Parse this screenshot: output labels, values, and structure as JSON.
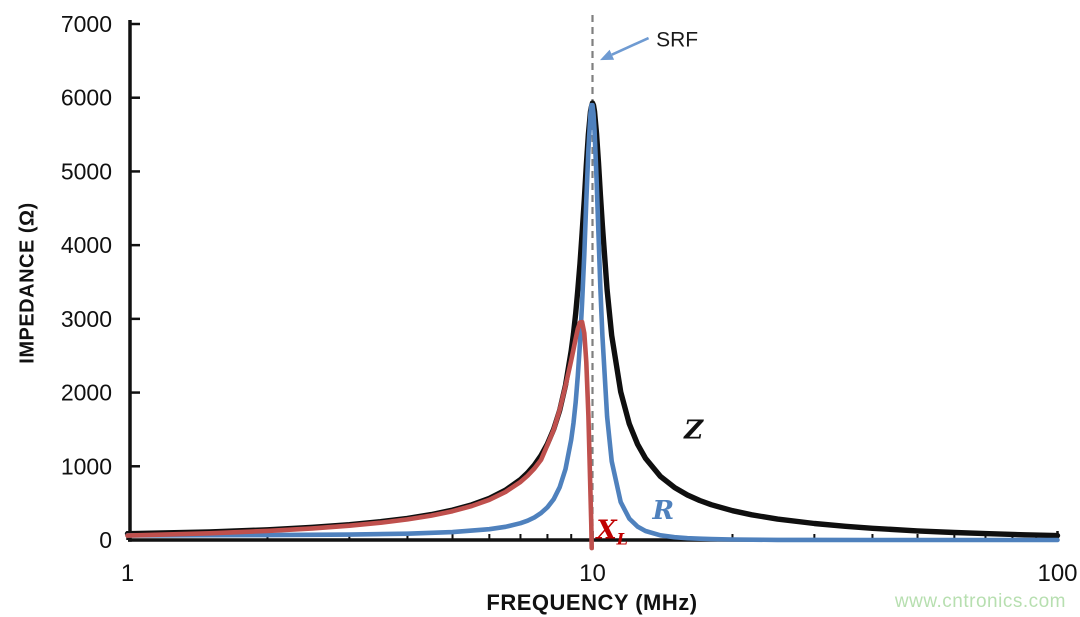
{
  "page": {
    "watermark": "www.cntronics.com"
  },
  "chart_data": {
    "type": "line",
    "title": "",
    "xlabel": "FREQUENCY (MHz)",
    "ylabel": "IMPEDANCE (Ω)",
    "x_scale": "log",
    "xlim": [
      1,
      100
    ],
    "ylim": [
      0,
      7000
    ],
    "grid": false,
    "legend_position": "none",
    "x_ticks": [
      1,
      10,
      100
    ],
    "x_minor_ticks": [
      2,
      3,
      4,
      5,
      6,
      7,
      8,
      9,
      20,
      30,
      40,
      50,
      60,
      70,
      80,
      90
    ],
    "y_ticks": [
      0,
      1000,
      2000,
      3000,
      4000,
      5000,
      6000,
      7000
    ],
    "axis_color": "#111111",
    "annotation": {
      "label": "SRF",
      "frequency_mhz": 10,
      "line_color": "#7f7f7f",
      "arrow_color": "#6f9bd2",
      "label_color": "#1a1a1a",
      "label_pos": [
        13.7,
        6800
      ],
      "arrow_from": [
        13.2,
        6810
      ],
      "arrow_to": [
        10.38,
        6510
      ]
    },
    "series": [
      {
        "name": "Z",
        "description": "total impedance magnitude",
        "color": "#0f0f0f",
        "width": 5.4,
        "label": "Z",
        "label_sub": "",
        "label_color": "#111111",
        "label_anchor": "middle",
        "label_pos": [
          16.5,
          1500
        ],
        "points": [
          [
            1,
            86
          ],
          [
            1.5,
            110
          ],
          [
            2,
            139
          ],
          [
            2.5,
            172
          ],
          [
            3,
            208
          ],
          [
            3.5,
            248
          ],
          [
            4,
            293
          ],
          [
            4.5,
            345
          ],
          [
            5,
            405
          ],
          [
            5.5,
            477
          ],
          [
            6,
            565
          ],
          [
            6.5,
            676
          ],
          [
            7,
            820
          ],
          [
            7.25,
            910
          ],
          [
            7.5,
            1017
          ],
          [
            7.75,
            1146
          ],
          [
            8,
            1304
          ],
          [
            8.25,
            1503
          ],
          [
            8.5,
            1759
          ],
          [
            8.75,
            2099
          ],
          [
            9,
            2566
          ],
          [
            9.1,
            2802
          ],
          [
            9.2,
            3076
          ],
          [
            9.3,
            3391
          ],
          [
            9.4,
            3753
          ],
          [
            9.5,
            4164
          ],
          [
            9.6,
            4615
          ],
          [
            9.7,
            5080
          ],
          [
            9.8,
            5506
          ],
          [
            9.9,
            5815
          ],
          [
            9.95,
            5880
          ],
          [
            10,
            5928
          ],
          [
            10.05,
            5899
          ],
          [
            10.1,
            5816
          ],
          [
            10.2,
            5519
          ],
          [
            10.3,
            5117
          ],
          [
            10.4,
            4683
          ],
          [
            10.5,
            4265
          ],
          [
            10.75,
            3394
          ],
          [
            11,
            2774
          ],
          [
            11.5,
            2010
          ],
          [
            12,
            1575
          ],
          [
            12.5,
            1298
          ],
          [
            13,
            1108
          ],
          [
            14,
            863
          ],
          [
            15,
            713
          ],
          [
            16,
            610
          ],
          [
            17,
            536
          ],
          [
            18,
            479
          ],
          [
            20,
            398
          ],
          [
            22,
            342
          ],
          [
            25,
            284
          ],
          [
            30,
            224
          ],
          [
            35,
            186
          ],
          [
            40,
            159
          ],
          [
            50,
            124
          ],
          [
            60,
            102
          ],
          [
            70,
            87
          ],
          [
            85,
            71
          ],
          [
            100,
            60
          ]
        ]
      },
      {
        "name": "R",
        "description": "resistive (real) part",
        "color": "#4f81bd",
        "width": 4.6,
        "label": "R",
        "label_sub": "",
        "label_color": "#4f81bd",
        "label_anchor": "middle",
        "label_pos": [
          14.2,
          410
        ],
        "points": [
          [
            1,
            62
          ],
          [
            2,
            66
          ],
          [
            3,
            73
          ],
          [
            4,
            85
          ],
          [
            5,
            107
          ],
          [
            6,
            146
          ],
          [
            6.5,
            179
          ],
          [
            7,
            228
          ],
          [
            7.25,
            262
          ],
          [
            7.5,
            306
          ],
          [
            7.75,
            365
          ],
          [
            8,
            444
          ],
          [
            8.25,
            554
          ],
          [
            8.5,
            716
          ],
          [
            8.75,
            962
          ],
          [
            9,
            1361
          ],
          [
            9.1,
            1588
          ],
          [
            9.2,
            1872
          ],
          [
            9.3,
            2228
          ],
          [
            9.4,
            2673
          ],
          [
            9.5,
            3222
          ],
          [
            9.6,
            3875
          ],
          [
            9.7,
            4601
          ],
          [
            9.8,
            5296
          ],
          [
            9.9,
            5789
          ],
          [
            9.95,
            5899
          ],
          [
            10,
            5898
          ],
          [
            10.05,
            5783
          ],
          [
            10.1,
            5566
          ],
          [
            10.2,
            4916
          ],
          [
            10.3,
            4144
          ],
          [
            10.4,
            3406
          ],
          [
            10.5,
            2771
          ],
          [
            10.75,
            1675
          ],
          [
            11,
            1069
          ],
          [
            11.5,
            514
          ],
          [
            12,
            290
          ],
          [
            12.5,
            182
          ],
          [
            13,
            122
          ],
          [
            14,
            64
          ],
          [
            15,
            38
          ],
          [
            16,
            25
          ],
          [
            17,
            17
          ],
          [
            18,
            12
          ],
          [
            20,
            7
          ],
          [
            25,
            2
          ],
          [
            30,
            1
          ],
          [
            40,
            0.5
          ],
          [
            60,
            0.2
          ],
          [
            100,
            0.1
          ]
        ]
      },
      {
        "name": "X_L",
        "description": "inductive reactance",
        "color": "#bf504d",
        "width": 4.6,
        "label": "X",
        "label_sub": "L",
        "label_color": "#c00000",
        "label_anchor": "start",
        "label_pos": [
          10.2,
          140
        ],
        "points": [
          [
            1,
            60
          ],
          [
            1.5,
            91
          ],
          [
            2,
            123
          ],
          [
            2.5,
            157
          ],
          [
            3,
            194
          ],
          [
            3.5,
            235
          ],
          [
            4,
            280
          ],
          [
            4.5,
            331
          ],
          [
            5,
            391
          ],
          [
            5.5,
            461
          ],
          [
            6,
            546
          ],
          [
            6.5,
            652
          ],
          [
            7,
            788
          ],
          [
            7.25,
            872
          ],
          [
            7.5,
            970
          ],
          [
            7.75,
            1087
          ],
          [
            8,
            1288
          ],
          [
            8.25,
            1495
          ],
          [
            8.5,
            1767
          ],
          [
            8.75,
            2089
          ],
          [
            9,
            2436
          ],
          [
            9.1,
            2586
          ],
          [
            9.2,
            2733
          ],
          [
            9.3,
            2864
          ],
          [
            9.4,
            2952
          ],
          [
            9.5,
            2956
          ],
          [
            9.6,
            2806
          ],
          [
            9.7,
            2413
          ],
          [
            9.8,
            1686
          ],
          [
            9.9,
            613
          ],
          [
            9.94,
            200
          ],
          [
            9.96,
            -110
          ]
        ]
      }
    ]
  }
}
